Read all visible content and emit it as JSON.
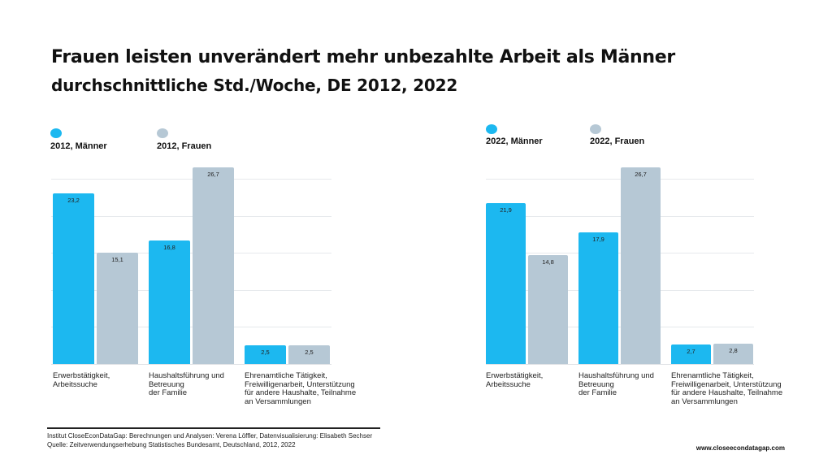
{
  "header": {
    "title": "Frauen leisten unverändert mehr unbezahlte Arbeit als Männer",
    "subtitle": "durchschnittliche Std./Woche, DE 2012, 2022"
  },
  "colors": {
    "men": "#1cb8f0",
    "women": "#b6c8d5"
  },
  "chart_data": [
    {
      "type": "bar",
      "categories": [
        "Erwerbstätigkeit,\nArbeitssuche",
        "Haushaltsführung und\nBetreuung\nder Familie",
        "Ehrenamtliche Tätigkeit,\nFreiwilligenarbeit, Unterstützung\nfür andere Haushalte, Teilnahme\nan Versammlungen"
      ],
      "series": [
        {
          "name": "2012, Männer",
          "values": [
            23.2,
            16.8,
            2.5
          ],
          "labels": [
            "23,2",
            "16,8",
            "2,5"
          ],
          "color": "#1cb8f0"
        },
        {
          "name": "2012, Frauen",
          "values": [
            15.1,
            26.7,
            2.5
          ],
          "labels": [
            "15,1",
            "26,7",
            "2,5"
          ],
          "color": "#b6c8d5"
        }
      ],
      "ylim": [
        0,
        26.7
      ],
      "grid": true,
      "legend": "top-left"
    },
    {
      "type": "bar",
      "categories": [
        "Erwerbstätigkeit,\nArbeitssuche",
        "Haushaltsführung und\nBetreuung\nder Familie",
        "Ehrenamtliche Tätigkeit,\nFreiwilligenarbeit, Unterstützung\nfür andere Haushalte, Teilnahme\nan Versammlungen"
      ],
      "series": [
        {
          "name": "2022, Männer",
          "values": [
            21.9,
            17.9,
            2.7
          ],
          "labels": [
            "21,9",
            "17,9",
            "2,7"
          ],
          "color": "#1cb8f0"
        },
        {
          "name": "2022, Frauen",
          "values": [
            14.8,
            26.7,
            2.8
          ],
          "labels": [
            "14,8",
            "26,7",
            "2,8"
          ],
          "color": "#b6c8d5"
        }
      ],
      "ylim": [
        0,
        26.7
      ],
      "grid": true,
      "legend": "top-left"
    }
  ],
  "footer": {
    "credits": "Institut CloseEconDataGap: Berechnungen und Analysen: Verena Löffler, Datenvisualisierung: Elisabeth Sechser",
    "source": "Quelle: Zeitverwendungserhebung Statistisches Bundesamt, Deutschland, 2012, 2022",
    "website": "www.closeecondatagap.com"
  }
}
